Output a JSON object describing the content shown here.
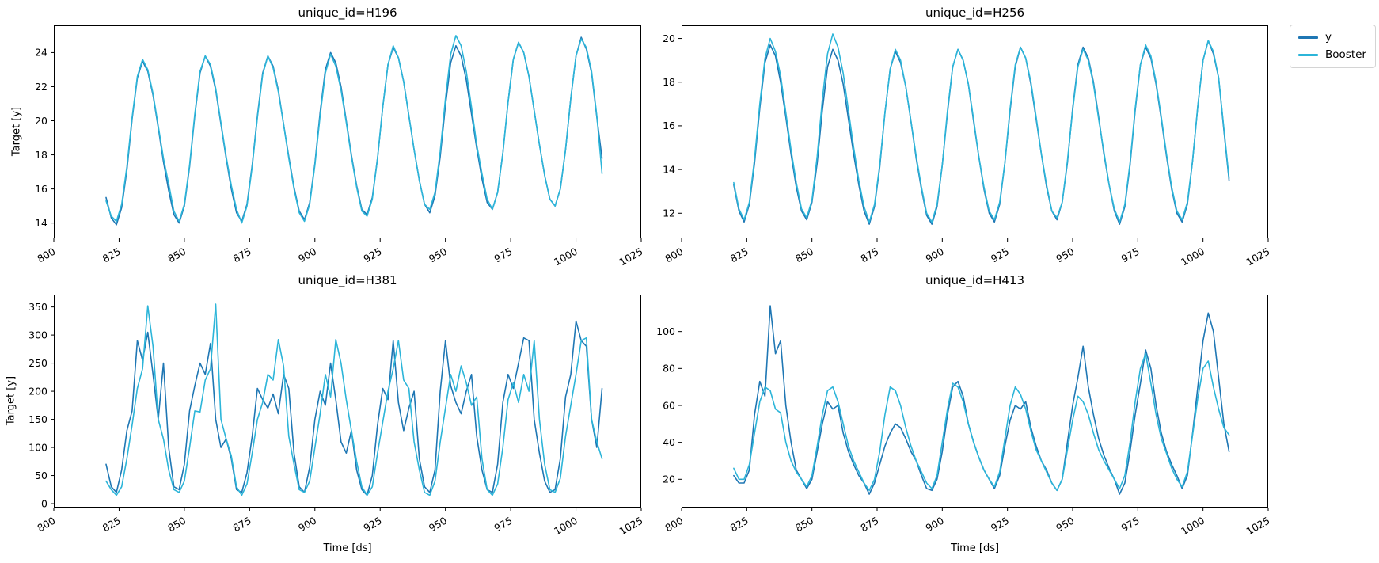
{
  "figure": {
    "background": "#ffffff"
  },
  "legend": {
    "entries": [
      {
        "label": "y",
        "color": "#1f77b4"
      },
      {
        "label": "Booster",
        "color": "#2cb5d9"
      }
    ]
  },
  "chart_data": [
    {
      "type": "line",
      "title": "unique_id=H196",
      "ylabel": "Target [y]",
      "xlabel": "",
      "xlim": [
        800,
        1025
      ],
      "ylim": [
        13.1,
        25.6
      ],
      "xticks": [
        800,
        825,
        850,
        875,
        900,
        925,
        950,
        975,
        1000,
        1025
      ],
      "yticks": [
        14,
        16,
        18,
        20,
        22,
        24
      ],
      "x_start": 820,
      "x_step": 2,
      "grid": false,
      "series": [
        {
          "name": "y",
          "color": "#1f77b4",
          "values": [
            15.5,
            14.3,
            13.9,
            14.9,
            17.1,
            20.1,
            22.5,
            23.5,
            22.9,
            21.5,
            19.6,
            17.6,
            15.9,
            14.5,
            14.0,
            15.0,
            17.3,
            20.3,
            22.8,
            23.8,
            23.2,
            21.8,
            19.8,
            17.8,
            16.0,
            14.6,
            14.1,
            15.1,
            17.4,
            20.3,
            22.8,
            23.8,
            23.2,
            21.8,
            19.8,
            17.9,
            16.1,
            14.7,
            14.2,
            15.2,
            17.5,
            20.5,
            23.0,
            24.0,
            23.4,
            22.0,
            20.0,
            18.0,
            16.2,
            14.8,
            14.5,
            15.5,
            17.8,
            20.8,
            23.3,
            24.3,
            23.7,
            22.3,
            20.3,
            18.3,
            16.5,
            15.1,
            14.6,
            15.6,
            17.9,
            20.9,
            23.4,
            24.4,
            23.8,
            22.4,
            20.4,
            18.4,
            16.6,
            15.2,
            14.8,
            15.8,
            18.1,
            21.1,
            23.6,
            24.6,
            24.0,
            22.6,
            20.6,
            18.6,
            16.8,
            15.4,
            15.0,
            16.0,
            18.3,
            21.3,
            23.8,
            24.9,
            24.2,
            22.8,
            20.2,
            17.8
          ]
        },
        {
          "name": "Booster",
          "color": "#2cb5d9",
          "values": [
            15.3,
            14.4,
            14.1,
            15.1,
            17.3,
            20.2,
            22.6,
            23.6,
            23.0,
            21.6,
            19.7,
            17.8,
            16.3,
            14.7,
            14.1,
            15.1,
            17.4,
            20.4,
            22.9,
            23.8,
            23.3,
            21.9,
            19.9,
            17.9,
            16.2,
            14.8,
            14.0,
            15.0,
            17.3,
            20.2,
            22.7,
            23.8,
            23.1,
            21.7,
            19.8,
            17.8,
            16.0,
            14.6,
            14.1,
            15.1,
            17.4,
            20.3,
            22.8,
            23.9,
            23.2,
            21.8,
            19.9,
            17.9,
            16.1,
            14.7,
            14.4,
            15.4,
            17.8,
            20.8,
            23.3,
            24.4,
            23.7,
            22.3,
            20.3,
            18.3,
            16.5,
            15.1,
            14.8,
            15.8,
            18.2,
            21.3,
            23.9,
            25.0,
            24.4,
            22.9,
            20.8,
            18.6,
            16.9,
            15.4,
            14.8,
            15.8,
            18.1,
            21.1,
            23.6,
            24.6,
            24.0,
            22.6,
            20.6,
            18.6,
            16.8,
            15.4,
            15.0,
            16.0,
            18.3,
            21.3,
            23.8,
            24.8,
            24.3,
            22.9,
            20.3,
            16.9
          ]
        }
      ]
    },
    {
      "type": "line",
      "title": "unique_id=H256",
      "ylabel": "",
      "xlabel": "",
      "xlim": [
        800,
        1025
      ],
      "ylim": [
        10.85,
        20.6
      ],
      "xticks": [
        800,
        825,
        850,
        875,
        900,
        925,
        950,
        975,
        1000,
        1025
      ],
      "yticks": [
        12,
        14,
        16,
        18,
        20
      ],
      "x_start": 820,
      "x_step": 2,
      "grid": false,
      "series": [
        {
          "name": "y",
          "color": "#1f77b4",
          "values": [
            13.3,
            12.1,
            11.6,
            12.4,
            14.3,
            16.8,
            18.9,
            19.7,
            19.2,
            18.0,
            16.4,
            14.7,
            13.2,
            12.1,
            11.7,
            12.5,
            14.3,
            16.7,
            18.7,
            19.5,
            19.0,
            17.9,
            16.3,
            14.7,
            13.3,
            12.1,
            11.5,
            12.3,
            14.1,
            16.6,
            18.6,
            19.4,
            18.9,
            17.8,
            16.2,
            14.5,
            13.1,
            11.9,
            11.5,
            12.3,
            14.2,
            16.6,
            18.7,
            19.5,
            19.0,
            17.9,
            16.2,
            14.6,
            13.1,
            12.0,
            11.6,
            12.4,
            14.3,
            16.7,
            18.7,
            19.6,
            19.1,
            17.9,
            16.3,
            14.7,
            13.2,
            12.1,
            11.7,
            12.5,
            14.3,
            16.8,
            18.8,
            19.6,
            19.1,
            18.0,
            16.4,
            14.7,
            13.3,
            12.1,
            11.5,
            12.3,
            14.2,
            16.7,
            18.8,
            19.6,
            19.1,
            17.9,
            16.3,
            14.6,
            13.1,
            12.0,
            11.6,
            12.4,
            14.4,
            16.9,
            19.0,
            19.9,
            19.3,
            18.2,
            15.8,
            13.5
          ]
        },
        {
          "name": "Booster",
          "color": "#2cb5d9",
          "values": [
            13.4,
            12.2,
            11.7,
            12.5,
            14.5,
            17.0,
            19.1,
            20.0,
            19.4,
            18.3,
            16.6,
            14.9,
            13.4,
            12.2,
            11.8,
            12.6,
            14.6,
            17.2,
            19.3,
            20.2,
            19.6,
            18.4,
            16.7,
            15.0,
            13.5,
            12.3,
            11.6,
            12.4,
            14.2,
            16.6,
            18.6,
            19.5,
            19.0,
            17.8,
            16.2,
            14.6,
            13.2,
            12.0,
            11.6,
            12.4,
            14.2,
            16.7,
            18.7,
            19.5,
            19.0,
            17.9,
            16.3,
            14.6,
            13.2,
            12.1,
            11.7,
            12.5,
            14.3,
            16.8,
            18.8,
            19.6,
            19.1,
            18.0,
            16.4,
            14.7,
            13.3,
            12.1,
            11.8,
            12.5,
            14.4,
            16.7,
            18.7,
            19.5,
            19.0,
            17.9,
            16.3,
            14.8,
            13.3,
            12.2,
            11.6,
            12.4,
            14.3,
            16.8,
            18.8,
            19.7,
            19.2,
            18.0,
            16.4,
            14.7,
            13.2,
            12.1,
            11.7,
            12.5,
            14.4,
            16.9,
            19.0,
            19.9,
            19.4,
            18.2,
            15.9,
            13.6
          ]
        }
      ]
    },
    {
      "type": "line",
      "title": "unique_id=H381",
      "ylabel": "Target [y]",
      "xlabel": "Time [ds]",
      "xlim": [
        800,
        1025
      ],
      "ylim": [
        -7,
        372
      ],
      "xticks": [
        800,
        825,
        850,
        875,
        900,
        925,
        950,
        975,
        1000,
        1025
      ],
      "yticks": [
        0,
        50,
        100,
        150,
        200,
        250,
        300,
        350
      ],
      "x_start": 820,
      "x_step": 2,
      "grid": false,
      "series": [
        {
          "name": "y",
          "color": "#1f77b4",
          "values": [
            70,
            30,
            20,
            60,
            130,
            165,
            290,
            255,
            305,
            230,
            150,
            250,
            100,
            30,
            25,
            70,
            165,
            210,
            250,
            230,
            285,
            150,
            100,
            115,
            80,
            25,
            20,
            55,
            120,
            205,
            185,
            170,
            195,
            160,
            230,
            205,
            90,
            30,
            20,
            65,
            150,
            200,
            175,
            250,
            185,
            110,
            90,
            130,
            60,
            25,
            15,
            50,
            140,
            205,
            185,
            290,
            180,
            130,
            170,
            200,
            80,
            30,
            20,
            60,
            200,
            290,
            210,
            180,
            160,
            200,
            230,
            120,
            60,
            25,
            20,
            70,
            180,
            230,
            205,
            250,
            295,
            290,
            150,
            90,
            40,
            20,
            25,
            80,
            190,
            230,
            325,
            290,
            280,
            150,
            100,
            205
          ]
        },
        {
          "name": "Booster",
          "color": "#2cb5d9",
          "values": [
            40,
            25,
            15,
            30,
            80,
            140,
            205,
            240,
            352,
            280,
            150,
            115,
            60,
            25,
            20,
            40,
            100,
            165,
            163,
            220,
            240,
            355,
            150,
            115,
            85,
            30,
            15,
            35,
            90,
            150,
            180,
            230,
            220,
            292,
            245,
            120,
            70,
            25,
            20,
            40,
            100,
            160,
            230,
            190,
            292,
            250,
            185,
            130,
            75,
            30,
            15,
            30,
            90,
            145,
            200,
            240,
            290,
            220,
            205,
            110,
            60,
            20,
            15,
            40,
            110,
            170,
            230,
            200,
            245,
            215,
            175,
            190,
            80,
            25,
            15,
            35,
            100,
            185,
            215,
            180,
            230,
            200,
            290,
            150,
            70,
            25,
            20,
            45,
            120,
            175,
            230,
            290,
            295,
            150,
            110,
            80
          ]
        }
      ]
    },
    {
      "type": "line",
      "title": "unique_id=H413",
      "ylabel": "",
      "xlabel": "Time [ds]",
      "xlim": [
        800,
        1025
      ],
      "ylim": [
        4.7,
        120
      ],
      "xticks": [
        800,
        825,
        850,
        875,
        900,
        925,
        950,
        975,
        1000,
        1025
      ],
      "yticks": [
        20,
        40,
        60,
        80,
        100
      ],
      "x_start": 820,
      "x_step": 2,
      "grid": false,
      "series": [
        {
          "name": "y",
          "color": "#1f77b4",
          "values": [
            22,
            18,
            18,
            25,
            55,
            73,
            65,
            114,
            88,
            95,
            60,
            40,
            25,
            20,
            15,
            20,
            35,
            50,
            62,
            58,
            60,
            45,
            35,
            28,
            22,
            18,
            12,
            18,
            28,
            38,
            45,
            50,
            48,
            42,
            35,
            30,
            22,
            15,
            14,
            20,
            35,
            55,
            70,
            73,
            65,
            50,
            40,
            32,
            25,
            20,
            15,
            22,
            38,
            52,
            60,
            58,
            62,
            48,
            38,
            30,
            25,
            18,
            14,
            20,
            40,
            60,
            75,
            92,
            70,
            55,
            42,
            33,
            26,
            20,
            12,
            18,
            35,
            55,
            72,
            90,
            80,
            60,
            45,
            35,
            28,
            22,
            15,
            22,
            45,
            70,
            95,
            110,
            100,
            75,
            50,
            35
          ]
        },
        {
          "name": "Booster",
          "color": "#2cb5d9",
          "values": [
            26,
            20,
            20,
            28,
            45,
            62,
            70,
            68,
            58,
            56,
            40,
            30,
            24,
            20,
            16,
            22,
            38,
            55,
            68,
            70,
            62,
            50,
            38,
            30,
            24,
            18,
            14,
            20,
            35,
            55,
            70,
            68,
            60,
            48,
            38,
            30,
            24,
            18,
            15,
            22,
            40,
            58,
            72,
            70,
            62,
            50,
            40,
            32,
            25,
            20,
            16,
            24,
            42,
            60,
            70,
            66,
            58,
            46,
            36,
            30,
            24,
            18,
            14,
            20,
            36,
            52,
            65,
            62,
            55,
            45,
            36,
            30,
            25,
            20,
            15,
            22,
            40,
            62,
            80,
            88,
            72,
            55,
            42,
            34,
            26,
            20,
            16,
            24,
            44,
            64,
            80,
            84,
            70,
            58,
            48,
            44
          ]
        }
      ]
    }
  ]
}
